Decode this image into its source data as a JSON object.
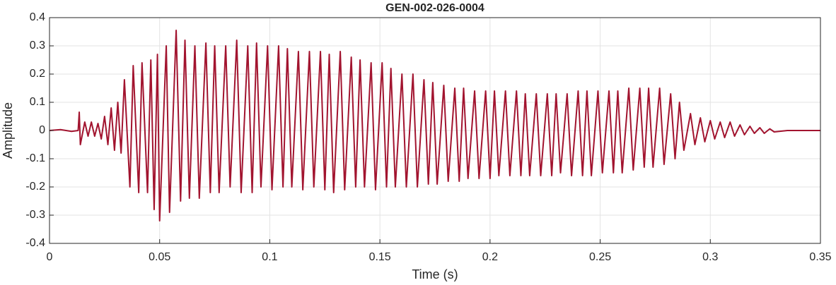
{
  "chart_data": {
    "type": "line",
    "title": "GEN-002-026-0004",
    "x_label": "Time (s)",
    "y_label": "Amplitude",
    "color": "#a2142f",
    "grid": true,
    "xlim": [
      0,
      0.35
    ],
    "ylim": [
      -0.4,
      0.4
    ],
    "xticks": [
      0,
      0.05,
      0.1,
      0.15,
      0.2,
      0.25,
      0.3,
      0.35
    ],
    "yticks": [
      -0.4,
      -0.3,
      -0.2,
      -0.1,
      0,
      0.1,
      0.2,
      0.3,
      0.4
    ],
    "x": [
      0,
      0.005,
      0.01,
      0.013,
      0.0135,
      0.014,
      0.016,
      0.0175,
      0.019,
      0.0205,
      0.022,
      0.0235,
      0.025,
      0.0265,
      0.028,
      0.0295,
      0.031,
      0.0325,
      0.034,
      0.0365,
      0.038,
      0.0405,
      0.042,
      0.0445,
      0.046,
      0.0475,
      0.049,
      0.05,
      0.053,
      0.0545,
      0.0575,
      0.0595,
      0.0615,
      0.0635,
      0.066,
      0.068,
      0.071,
      0.073,
      0.075,
      0.077,
      0.08,
      0.082,
      0.085,
      0.087,
      0.09,
      0.092,
      0.094,
      0.096,
      0.099,
      0.101,
      0.104,
      0.106,
      0.108,
      0.11,
      0.113,
      0.115,
      0.118,
      0.12,
      0.123,
      0.125,
      0.127,
      0.129,
      0.132,
      0.134,
      0.137,
      0.139,
      0.141,
      0.143,
      0.146,
      0.148,
      0.151,
      0.153,
      0.155,
      0.157,
      0.16,
      0.162,
      0.165,
      0.167,
      0.17,
      0.172,
      0.174,
      0.176,
      0.179,
      0.181,
      0.184,
      0.186,
      0.188,
      0.19,
      0.193,
      0.195,
      0.198,
      0.2,
      0.202,
      0.204,
      0.207,
      0.209,
      0.212,
      0.214,
      0.216,
      0.218,
      0.221,
      0.223,
      0.226,
      0.228,
      0.23,
      0.232,
      0.235,
      0.237,
      0.24,
      0.242,
      0.244,
      0.246,
      0.249,
      0.251,
      0.254,
      0.256,
      0.258,
      0.26,
      0.263,
      0.265,
      0.268,
      0.27,
      0.272,
      0.274,
      0.277,
      0.279,
      0.282,
      0.284,
      0.286,
      0.288,
      0.291,
      0.293,
      0.2955,
      0.2975,
      0.3,
      0.302,
      0.3045,
      0.3065,
      0.309,
      0.311,
      0.3135,
      0.3155,
      0.318,
      0.32,
      0.3225,
      0.3245,
      0.327,
      0.329,
      0.335,
      0.35
    ],
    "values": [
      0,
      0.003,
      -0.003,
      0,
      0.065,
      -0.05,
      0.03,
      -0.02,
      0.03,
      -0.02,
      0.025,
      -0.03,
      0.05,
      -0.05,
      0.08,
      -0.07,
      0.1,
      -0.08,
      0.18,
      -0.2,
      0.23,
      -0.22,
      0.24,
      -0.22,
      0.25,
      -0.28,
      0.27,
      -0.32,
      0.3,
      -0.29,
      0.355,
      -0.25,
      0.32,
      -0.24,
      0.3,
      -0.24,
      0.31,
      -0.22,
      0.3,
      -0.22,
      0.3,
      -0.2,
      0.32,
      -0.22,
      0.3,
      -0.22,
      0.31,
      -0.2,
      0.3,
      -0.21,
      0.3,
      -0.2,
      0.29,
      -0.2,
      0.28,
      -0.21,
      0.28,
      -0.2,
      0.28,
      -0.21,
      0.27,
      -0.22,
      0.28,
      -0.21,
      0.26,
      -0.2,
      0.25,
      -0.2,
      0.24,
      -0.21,
      0.24,
      -0.2,
      0.22,
      -0.2,
      0.2,
      -0.2,
      0.2,
      -0.2,
      0.18,
      -0.19,
      0.17,
      -0.19,
      0.16,
      -0.18,
      0.15,
      -0.18,
      0.15,
      -0.17,
      0.14,
      -0.17,
      0.14,
      -0.17,
      0.14,
      -0.16,
      0.14,
      -0.16,
      0.14,
      -0.16,
      0.13,
      -0.16,
      0.13,
      -0.16,
      0.13,
      -0.16,
      0.13,
      -0.15,
      0.13,
      -0.16,
      0.14,
      -0.16,
      0.14,
      -0.16,
      0.14,
      -0.15,
      0.14,
      -0.15,
      0.14,
      -0.15,
      0.15,
      -0.14,
      0.15,
      -0.13,
      0.15,
      -0.13,
      0.15,
      -0.12,
      0.13,
      -0.1,
      0.1,
      -0.07,
      0.06,
      -0.05,
      0.045,
      -0.04,
      0.035,
      -0.03,
      0.03,
      -0.025,
      0.03,
      -0.02,
      0.02,
      -0.015,
      0.015,
      -0.01,
      0.01,
      -0.01,
      0.006,
      -0.005,
      0,
      0
    ]
  }
}
